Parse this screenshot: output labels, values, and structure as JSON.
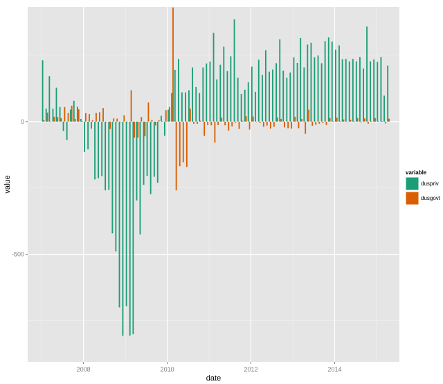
{
  "chart_data": {
    "type": "bar",
    "xlabel": "date",
    "ylabel": "value",
    "x_range": [
      "2006-09-01",
      "2015-07-20"
    ],
    "y_range": [
      -905,
      432
    ],
    "x_ticks": [
      {
        "date": "2008-01-01",
        "label": "2008"
      },
      {
        "date": "2010-01-01",
        "label": "2010"
      },
      {
        "date": "2012-01-01",
        "label": "2012"
      },
      {
        "date": "2014-01-01",
        "label": "2014"
      }
    ],
    "y_ticks": [
      {
        "value": 0,
        "label": "0"
      },
      {
        "value": -500,
        "label": "-500"
      }
    ],
    "grid": true,
    "legend": {
      "title": "variable",
      "position": "right"
    },
    "dates": [
      "2007-01",
      "2007-02",
      "2007-03",
      "2007-04",
      "2007-05",
      "2007-06",
      "2007-07",
      "2007-08",
      "2007-09",
      "2007-10",
      "2007-11",
      "2007-12",
      "2008-01",
      "2008-02",
      "2008-03",
      "2008-04",
      "2008-05",
      "2008-06",
      "2008-07",
      "2008-08",
      "2008-09",
      "2008-10",
      "2008-11",
      "2008-12",
      "2009-01",
      "2009-02",
      "2009-03",
      "2009-04",
      "2009-05",
      "2009-06",
      "2009-07",
      "2009-08",
      "2009-09",
      "2009-10",
      "2009-11",
      "2009-12",
      "2010-01",
      "2010-02",
      "2010-03",
      "2010-04",
      "2010-05",
      "2010-06",
      "2010-07",
      "2010-08",
      "2010-09",
      "2010-10",
      "2010-11",
      "2010-12",
      "2011-01",
      "2011-02",
      "2011-03",
      "2011-04",
      "2011-05",
      "2011-06",
      "2011-07",
      "2011-08",
      "2011-09",
      "2011-10",
      "2011-11",
      "2011-12",
      "2012-01",
      "2012-02",
      "2012-03",
      "2012-04",
      "2012-05",
      "2012-06",
      "2012-07",
      "2012-08",
      "2012-09",
      "2012-10",
      "2012-11",
      "2012-12",
      "2013-01",
      "2013-02",
      "2013-03",
      "2013-04",
      "2013-05",
      "2013-06",
      "2013-07",
      "2013-08",
      "2013-09",
      "2013-10",
      "2013-11",
      "2013-12",
      "2014-01",
      "2014-02",
      "2014-03",
      "2014-04",
      "2014-05",
      "2014-06",
      "2014-07",
      "2014-08",
      "2014-09",
      "2014-10",
      "2014-11",
      "2014-12",
      "2015-01",
      "2015-02",
      "2015-03",
      "2015-04"
    ],
    "series": [
      {
        "name": "duspriv",
        "color": "#1b9e77",
        "values": [
          231,
          49,
          171,
          49,
          128,
          55,
          -35,
          -69,
          45,
          78,
          56,
          10,
          -115,
          -104,
          -26,
          -218,
          -213,
          -205,
          -259,
          -257,
          -421,
          -489,
          -700,
          -807,
          -695,
          -806,
          -801,
          -297,
          -425,
          -238,
          -204,
          -273,
          -208,
          -230,
          22,
          -53,
          45,
          108,
          195,
          236,
          110,
          110,
          118,
          204,
          130,
          108,
          204,
          219,
          226,
          334,
          159,
          214,
          282,
          190,
          246,
          385,
          165,
          104,
          120,
          148,
          207,
          112,
          233,
          176,
          269,
          188,
          196,
          220,
          310,
          192,
          165,
          185,
          242,
          221,
          315,
          204,
          290,
          297,
          242,
          249,
          220,
          303,
          317,
          301,
          271,
          287,
          235,
          236,
          227,
          236,
          227,
          243,
          200,
          358,
          227,
          234,
          225,
          243,
          98,
          211
        ]
      },
      {
        "name": "dusgovt",
        "color": "#d95f02",
        "values": [
          5,
          34,
          0,
          18,
          17,
          13,
          55,
          33,
          60,
          10,
          46,
          2,
          32,
          28,
          5,
          33,
          35,
          51,
          0,
          -28,
          12,
          11,
          0,
          24,
          0,
          118,
          -60,
          -60,
          17,
          -55,
          72,
          7,
          -15,
          5,
          1,
          43,
          55,
          430,
          -259,
          -168,
          -153,
          -171,
          49,
          -8,
          -8,
          3,
          -54,
          -13,
          -14,
          -79,
          -13,
          15,
          -14,
          -34,
          -18,
          -4,
          -27,
          3,
          20,
          -30,
          19,
          0,
          -5,
          -19,
          -15,
          -26,
          -19,
          16,
          10,
          -22,
          -25,
          -26,
          18,
          -25,
          10,
          -46,
          45,
          -16,
          -12,
          -8,
          -5,
          -13,
          14,
          1,
          15,
          1,
          8,
          -1,
          7,
          1,
          14,
          -3,
          12,
          -8,
          1,
          13,
          1,
          1,
          -7,
          11
        ]
      }
    ]
  }
}
